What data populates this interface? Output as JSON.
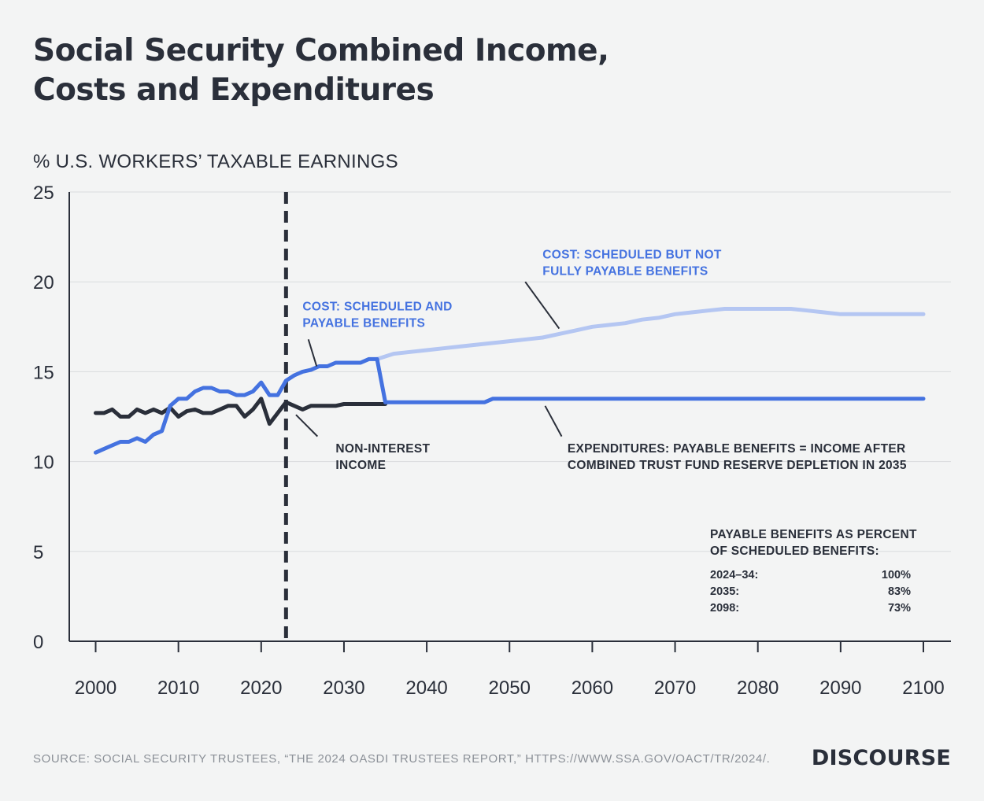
{
  "title_lines": [
    "Social Security Combined Income,",
    "Costs and Expenditures"
  ],
  "y_unit_label": "% U.S. WORKERS’ TAXABLE EARNINGS",
  "source": "SOURCE: SOCIAL SECURITY TRUSTEES, “THE 2024 OASDI TRUSTEES REPORT,” HTTPS://WWW.SSA.GOV/OACT/TR/2024/.",
  "brand": "DISCOURSE",
  "colors": {
    "background": "#f3f4f4",
    "text": "#2a2f3a",
    "non_interest_income": "#2a2f3a",
    "cost_scheduled_payable": "#4472e0",
    "cost_not_fully_payable": "#b4c6f2",
    "expenditures": "#4472e0",
    "gridline": "#d9dbde",
    "reference_line": "#2a2f3a"
  },
  "chart_data": {
    "type": "line",
    "ylim": [
      0,
      25
    ],
    "xlim": [
      1997,
      2103
    ],
    "yticks": [
      0,
      5,
      10,
      15,
      20,
      25
    ],
    "xticks": [
      2000,
      2010,
      2020,
      2030,
      2040,
      2050,
      2060,
      2070,
      2080,
      2090,
      2100
    ],
    "grid": true,
    "reference_line_x": 2023,
    "series": [
      {
        "name": "NON-INTEREST INCOME",
        "color": "#2a2f3a",
        "x": [
          2000,
          2001,
          2002,
          2003,
          2004,
          2005,
          2006,
          2007,
          2008,
          2009,
          2010,
          2011,
          2012,
          2013,
          2014,
          2015,
          2016,
          2017,
          2018,
          2019,
          2020,
          2021,
          2022,
          2023,
          2024,
          2025,
          2026,
          2027,
          2028,
          2029,
          2030,
          2031,
          2032,
          2033,
          2034,
          2035
        ],
        "y": [
          12.7,
          12.7,
          12.9,
          12.5,
          12.5,
          12.9,
          12.7,
          12.9,
          12.7,
          13.0,
          12.5,
          12.8,
          12.9,
          12.7,
          12.7,
          12.9,
          13.1,
          13.1,
          12.5,
          12.9,
          13.5,
          12.1,
          12.7,
          13.3,
          13.1,
          12.9,
          13.1,
          13.1,
          13.1,
          13.1,
          13.2,
          13.2,
          13.2,
          13.2,
          13.2,
          13.2
        ]
      },
      {
        "name": "COST: SCHEDULED AND PAYABLE BENEFITS",
        "color": "#4472e0",
        "x": [
          2000,
          2001,
          2002,
          2003,
          2004,
          2005,
          2006,
          2007,
          2008,
          2009,
          2010,
          2011,
          2012,
          2013,
          2014,
          2015,
          2016,
          2017,
          2018,
          2019,
          2020,
          2021,
          2022,
          2023,
          2024,
          2025,
          2026,
          2027,
          2028,
          2029,
          2030,
          2031,
          2032,
          2033,
          2034,
          2035
        ],
        "y": [
          10.5,
          10.7,
          10.9,
          11.1,
          11.1,
          11.3,
          11.1,
          11.5,
          11.7,
          13.1,
          13.5,
          13.5,
          13.9,
          14.1,
          14.1,
          13.9,
          13.9,
          13.7,
          13.7,
          13.9,
          14.4,
          13.7,
          13.7,
          14.5,
          14.8,
          15.0,
          15.1,
          15.3,
          15.3,
          15.5,
          15.5,
          15.5,
          15.5,
          15.7,
          15.7,
          13.3
        ]
      },
      {
        "name": "COST: SCHEDULED BUT NOT FULLY PAYABLE BENEFITS",
        "color": "#b4c6f2",
        "x": [
          2034,
          2036,
          2038,
          2040,
          2042,
          2044,
          2046,
          2048,
          2050,
          2052,
          2054,
          2056,
          2058,
          2060,
          2062,
          2064,
          2066,
          2068,
          2070,
          2072,
          2074,
          2076,
          2078,
          2080,
          2082,
          2084,
          2086,
          2088,
          2090,
          2092,
          2094,
          2096,
          2098,
          2100
        ],
        "y": [
          15.7,
          16.0,
          16.1,
          16.2,
          16.3,
          16.4,
          16.5,
          16.6,
          16.7,
          16.8,
          16.9,
          17.1,
          17.3,
          17.5,
          17.6,
          17.7,
          17.9,
          18.0,
          18.2,
          18.3,
          18.4,
          18.5,
          18.5,
          18.5,
          18.5,
          18.5,
          18.4,
          18.3,
          18.2,
          18.2,
          18.2,
          18.2,
          18.2,
          18.2
        ]
      },
      {
        "name": "EXPENDITURES: PAYABLE BENEFITS = INCOME AFTER COMBINED TRUST FUND RESERVE DEPLETION IN 2035",
        "color": "#4472e0",
        "x": [
          2035,
          2040,
          2045,
          2047,
          2048,
          2050,
          2060,
          2070,
          2080,
          2090,
          2100
        ],
        "y": [
          13.3,
          13.3,
          13.3,
          13.3,
          13.5,
          13.5,
          13.5,
          13.5,
          13.5,
          13.5,
          13.5
        ]
      }
    ],
    "annotations": [
      {
        "text": [
          "NON-INTEREST",
          "INCOME"
        ],
        "color": "#2a2f3a",
        "label_x": 2029,
        "label_y": 10.5
      },
      {
        "text": [
          "COST: SCHEDULED AND",
          "PAYABLE BENEFITS"
        ],
        "color": "#4472e0",
        "label_x": 2025,
        "label_y": 18.4
      },
      {
        "text": [
          "COST: SCHEDULED BUT NOT",
          "FULLY PAYABLE BENEFITS"
        ],
        "color": "#4472e0",
        "label_x": 2054,
        "label_y": 21.3
      },
      {
        "text": [
          "EXPENDITURES: PAYABLE BENEFITS = INCOME AFTER",
          "COMBINED TRUST FUND RESERVE DEPLETION IN 2035"
        ],
        "color": "#2a2f3a",
        "label_x": 2057,
        "label_y": 10.5
      }
    ],
    "payable_table": {
      "heading": [
        "PAYABLE BENEFITS AS PERCENT",
        "OF SCHEDULED BENEFITS:"
      ],
      "rows": [
        {
          "period": "2024–34:",
          "value": "100%"
        },
        {
          "period": "2035:",
          "value": "83%"
        },
        {
          "period": "2098:",
          "value": "73%"
        }
      ]
    }
  }
}
